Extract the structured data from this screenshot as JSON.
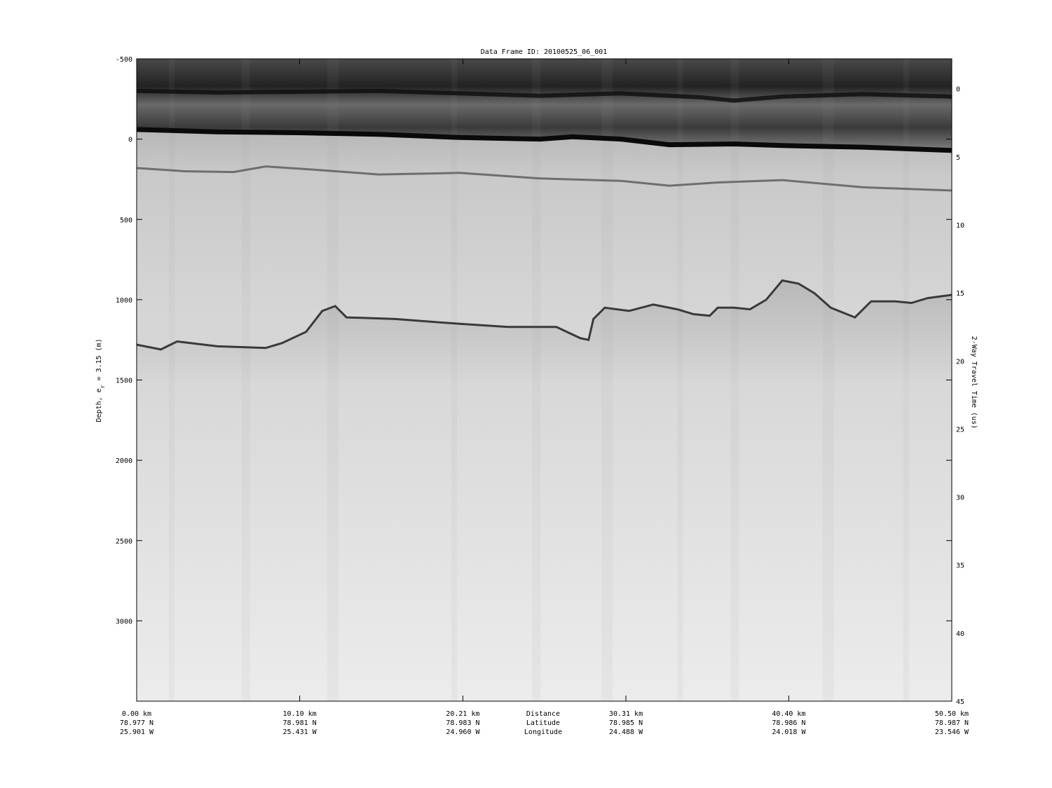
{
  "chart_data": {
    "type": "heatmap",
    "title": "Data Frame ID: 20100525_06_001",
    "colormap": "grayscale",
    "ylabel_left": "Depth, e",
    "ylabel_left_sub": "r",
    "ylabel_left_rest": " = 3.15 (m)",
    "ylabel_right": "2-Way Travel Time (us)",
    "y_left": {
      "range": [
        -500,
        3500
      ],
      "ticks": [
        -500,
        0,
        500,
        1000,
        1500,
        2000,
        2500,
        3000
      ]
    },
    "y_right": {
      "range": [
        -2.2,
        45
      ],
      "ticks": [
        0,
        5,
        10,
        15,
        20,
        25,
        30,
        35,
        40,
        45
      ]
    },
    "x": {
      "range_km": [
        0,
        50.5
      ],
      "ticks": [
        {
          "km": 0.0,
          "distance": "0.00 km",
          "latitude": "78.977 N",
          "longitude": "25.901 W"
        },
        {
          "km": 10.1,
          "distance": "10.10 km",
          "latitude": "78.981 N",
          "longitude": "25.431 W"
        },
        {
          "km": 20.21,
          "distance": "20.21 km",
          "latitude": "78.983 N",
          "longitude": "24.960 W"
        },
        {
          "km": 30.31,
          "distance": "30.31 km",
          "latitude": "78.985 N",
          "longitude": "24.488 W"
        },
        {
          "km": 40.4,
          "distance": "40.40 km",
          "latitude": "78.986 N",
          "longitude": "24.018 W"
        },
        {
          "km": 50.5,
          "distance": "50.50 km",
          "latitude": "78.987 N",
          "longitude": "23.546 W"
        }
      ],
      "row_labels": [
        "Distance",
        "Latitude",
        "Longitude"
      ]
    },
    "reflectors": {
      "air_reflector_depth_m": [
        [
          0,
          -300
        ],
        [
          5,
          -290
        ],
        [
          10,
          -295
        ],
        [
          15,
          -300
        ],
        [
          20,
          -285
        ],
        [
          25,
          -270
        ],
        [
          30,
          -285
        ],
        [
          35,
          -260
        ],
        [
          37,
          -240
        ],
        [
          40,
          -265
        ],
        [
          45,
          -280
        ],
        [
          50.5,
          -265
        ]
      ],
      "surface_depth_m": [
        [
          0,
          -60
        ],
        [
          5,
          -45
        ],
        [
          10,
          -40
        ],
        [
          15,
          -30
        ],
        [
          20,
          -10
        ],
        [
          25,
          0
        ],
        [
          27,
          -15
        ],
        [
          30,
          0
        ],
        [
          33,
          35
        ],
        [
          37,
          30
        ],
        [
          40,
          40
        ],
        [
          45,
          50
        ],
        [
          50.5,
          70
        ]
      ],
      "internal_layer_depth_m": [
        [
          0,
          180
        ],
        [
          3,
          200
        ],
        [
          6,
          205
        ],
        [
          8,
          170
        ],
        [
          11,
          190
        ],
        [
          15,
          220
        ],
        [
          20,
          210
        ],
        [
          25,
          245
        ],
        [
          30,
          260
        ],
        [
          33,
          290
        ],
        [
          36,
          270
        ],
        [
          40,
          255
        ],
        [
          45,
          300
        ],
        [
          50.5,
          320
        ]
      ],
      "bed_depth_m": [
        [
          0,
          1280
        ],
        [
          1.5,
          1310
        ],
        [
          2.5,
          1260
        ],
        [
          5,
          1290
        ],
        [
          8,
          1300
        ],
        [
          9,
          1270
        ],
        [
          10.5,
          1200
        ],
        [
          11.5,
          1070
        ],
        [
          12.3,
          1040
        ],
        [
          13,
          1110
        ],
        [
          16,
          1120
        ],
        [
          20,
          1150
        ],
        [
          23,
          1170
        ],
        [
          26,
          1170
        ],
        [
          27.5,
          1240
        ],
        [
          28,
          1250
        ],
        [
          28.3,
          1120
        ],
        [
          29,
          1050
        ],
        [
          30.5,
          1070
        ],
        [
          32,
          1030
        ],
        [
          33.5,
          1060
        ],
        [
          34.5,
          1090
        ],
        [
          35.5,
          1100
        ],
        [
          36,
          1050
        ],
        [
          37,
          1050
        ],
        [
          38,
          1060
        ],
        [
          39,
          1000
        ],
        [
          40,
          880
        ],
        [
          41,
          900
        ],
        [
          42,
          960
        ],
        [
          43,
          1050
        ],
        [
          44.5,
          1110
        ],
        [
          45.5,
          1010
        ],
        [
          47,
          1010
        ],
        [
          48,
          1020
        ],
        [
          49,
          990
        ],
        [
          50.5,
          970
        ]
      ]
    }
  }
}
